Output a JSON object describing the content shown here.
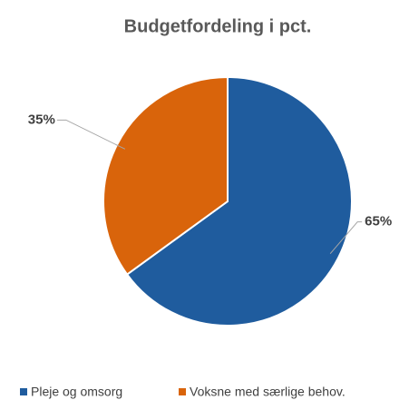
{
  "chart_data": {
    "type": "pie",
    "title": "Budgetfordeling i pct.",
    "categories": [
      "Pleje og omsorg",
      "Voksne med særlige behov."
    ],
    "values": [
      65,
      35
    ],
    "value_labels": [
      "65%",
      "35%"
    ],
    "colors": [
      "#1f5c9e",
      "#d9640b"
    ],
    "legend": "bottom"
  }
}
